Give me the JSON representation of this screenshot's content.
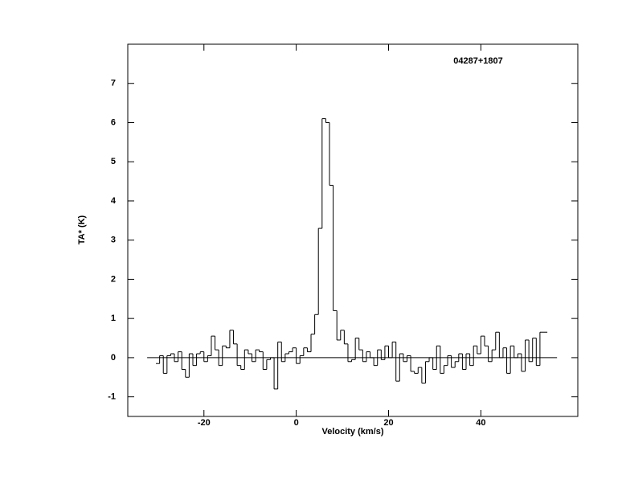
{
  "chart_data": {
    "type": "step",
    "title": "04287+1807",
    "xlabel": "Velocity (km/s)",
    "ylabel": "TA* (K)",
    "xlim": [
      -36.5,
      61
    ],
    "ylim": [
      -1.5,
      8
    ],
    "xticks": [
      -20,
      0,
      20,
      40
    ],
    "yticks": [
      -1,
      0,
      1,
      2,
      3,
      4,
      5,
      6,
      7
    ],
    "color": "#000000",
    "baseline": {
      "value": 0,
      "xrange": [
        -32.3,
        56.5
      ]
    },
    "x": [
      -30,
      -29.2,
      -28.4,
      -27.6,
      -26.8,
      -26,
      -25.2,
      -24.4,
      -23.6,
      -22.8,
      -22,
      -21.2,
      -20.4,
      -19.6,
      -18.8,
      -18,
      -17.2,
      -16.4,
      -15.6,
      -14.8,
      -14,
      -13.2,
      -12.4,
      -11.6,
      -10.8,
      -10,
      -9.2,
      -8.4,
      -7.6,
      -6.8,
      -6,
      -5.2,
      -4.4,
      -3.6,
      -2.8,
      -2,
      -1.2,
      -0.4,
      0.4,
      1.2,
      2,
      2.8,
      3.6,
      4.4,
      5.2,
      6,
      6.8,
      7.6,
      8.4,
      9.2,
      10,
      10.8,
      11.6,
      12.4,
      13.2,
      14,
      14.8,
      15.6,
      16.4,
      17.2,
      18,
      18.8,
      19.6,
      20.4,
      21.2,
      22,
      22.8,
      23.6,
      24.4,
      25.2,
      26,
      26.8,
      27.6,
      28.4,
      29.2,
      30,
      30.8,
      31.6,
      32.4,
      33.2,
      34,
      34.8,
      35.6,
      36.4,
      37.2,
      38,
      38.8,
      39.6,
      40.4,
      41.2,
      42,
      42.8,
      43.6,
      44.4,
      45.2,
      46,
      46.8,
      47.6,
      48.4,
      49.2,
      50,
      50.8,
      51.6,
      52.4,
      53.2,
      54
    ],
    "values": [
      -0.15,
      0.05,
      -0.4,
      0.05,
      0.1,
      -0.1,
      0.15,
      -0.3,
      -0.5,
      0.1,
      -0.2,
      0.1,
      0.15,
      -0.1,
      0.05,
      0.55,
      0.2,
      -0.2,
      0.3,
      0.25,
      0.7,
      0.35,
      -0.2,
      -0.3,
      0.2,
      0.1,
      -0.1,
      0.2,
      0.15,
      -0.3,
      -0.05,
      0.0,
      -0.8,
      0.4,
      -0.1,
      0.1,
      0.15,
      0.25,
      -0.15,
      0.05,
      0.25,
      0.15,
      0.6,
      1.1,
      3.3,
      6.1,
      6.0,
      4.4,
      1.2,
      0.45,
      0.7,
      0.35,
      -0.1,
      -0.05,
      0.5,
      0.2,
      -0.1,
      0.15,
      0.0,
      -0.2,
      0.2,
      -0.05,
      0.3,
      0.0,
      0.4,
      -0.6,
      0.1,
      -0.1,
      0.05,
      -0.35,
      -0.4,
      -0.25,
      -0.65,
      -0.1,
      0.0,
      -0.3,
      0.3,
      -0.4,
      -0.2,
      0.05,
      -0.25,
      -0.1,
      0.1,
      -0.3,
      0.1,
      -0.2,
      0.3,
      0.1,
      0.55,
      0.3,
      -0.1,
      0.2,
      0.65,
      0.0,
      0.25,
      -0.4,
      0.3,
      0.0,
      0.1,
      -0.35,
      0.45,
      -0.1,
      0.5,
      -0.2,
      0.65,
      0.65
    ]
  }
}
